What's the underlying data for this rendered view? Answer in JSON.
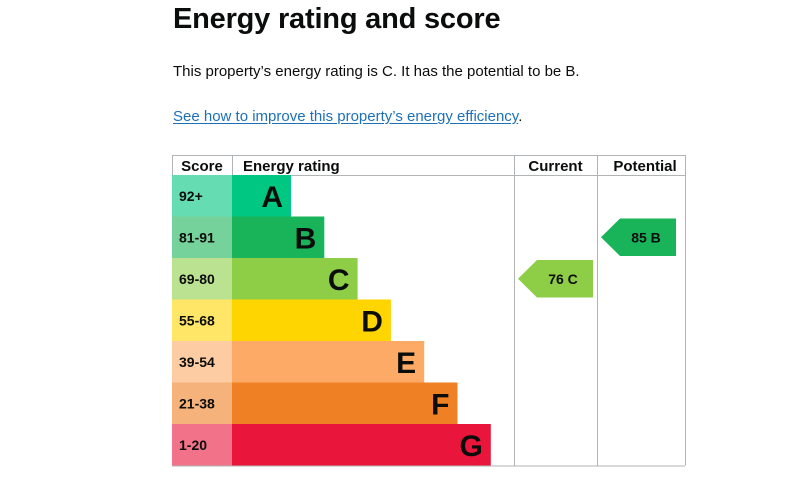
{
  "heading": "Energy rating and score",
  "summary": "This property’s energy rating is C. It has the potential to be B.",
  "improve": {
    "link_text": "See how to improve this property’s energy efficiency",
    "suffix": "."
  },
  "chart_data": {
    "type": "table",
    "headers": {
      "score": "Score",
      "rating": "Energy rating",
      "current": "Current",
      "potential": "Potential"
    },
    "bands": [
      {
        "score": "92+",
        "letter": "A",
        "color": "#00c781",
        "score_bg": "#66dcb3"
      },
      {
        "score": "81-91",
        "letter": "B",
        "color": "#19b459",
        "score_bg": "#75d29b"
      },
      {
        "score": "69-80",
        "letter": "C",
        "color": "#8dce46",
        "score_bg": "#bbe290"
      },
      {
        "score": "55-68",
        "letter": "D",
        "color": "#ffd500",
        "score_bg": "#ffe666"
      },
      {
        "score": "39-54",
        "letter": "E",
        "color": "#fcaa65",
        "score_bg": "#fdcca3"
      },
      {
        "score": "21-38",
        "letter": "F",
        "color": "#ef8023",
        "score_bg": "#f5b37b"
      },
      {
        "score": "1-20",
        "letter": "G",
        "color": "#e9153b",
        "score_bg": "#f27389"
      }
    ],
    "current": {
      "value": 76,
      "letter": "C",
      "label": "76 C",
      "color": "#8dce46"
    },
    "potential": {
      "value": 85,
      "letter": "B",
      "label": "85 B",
      "color": "#19b459"
    }
  }
}
